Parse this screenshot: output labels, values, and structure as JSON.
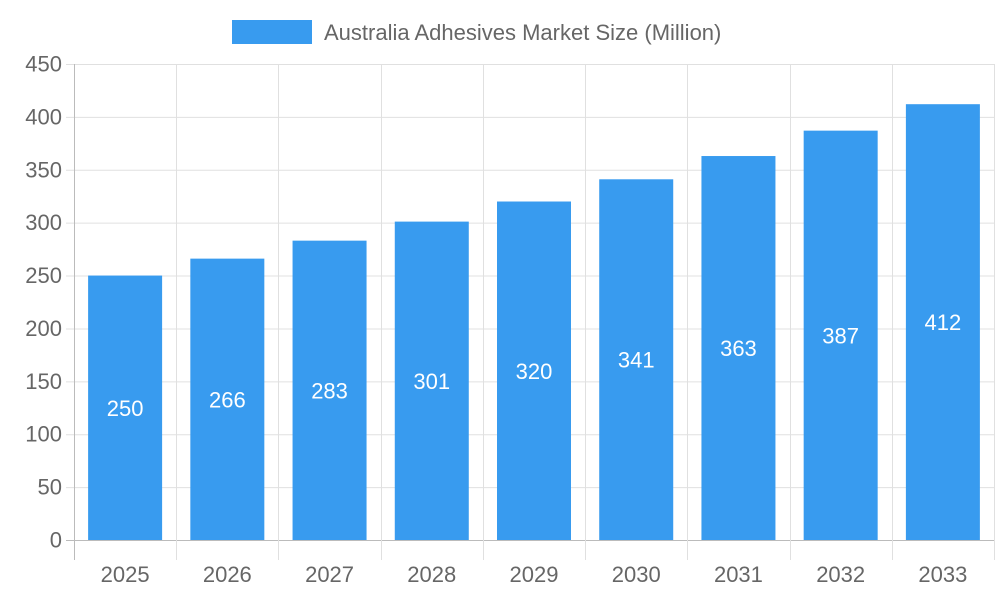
{
  "chart_data": {
    "type": "bar",
    "title": "",
    "xlabel": "",
    "ylabel": "",
    "categories": [
      "2025",
      "2026",
      "2027",
      "2028",
      "2029",
      "2030",
      "2031",
      "2032",
      "2033"
    ],
    "series": [
      {
        "name": "Australia Adhesives Market Size (Million)",
        "values": [
          250,
          266,
          283,
          301,
          320,
          341,
          363,
          387,
          412
        ],
        "color": "#389bef"
      }
    ],
    "ylim": [
      0,
      450
    ],
    "yticks": [
      0,
      50,
      100,
      150,
      200,
      250,
      300,
      350,
      400,
      450
    ],
    "grid": true,
    "legend": "top-center",
    "data_labels": true
  }
}
